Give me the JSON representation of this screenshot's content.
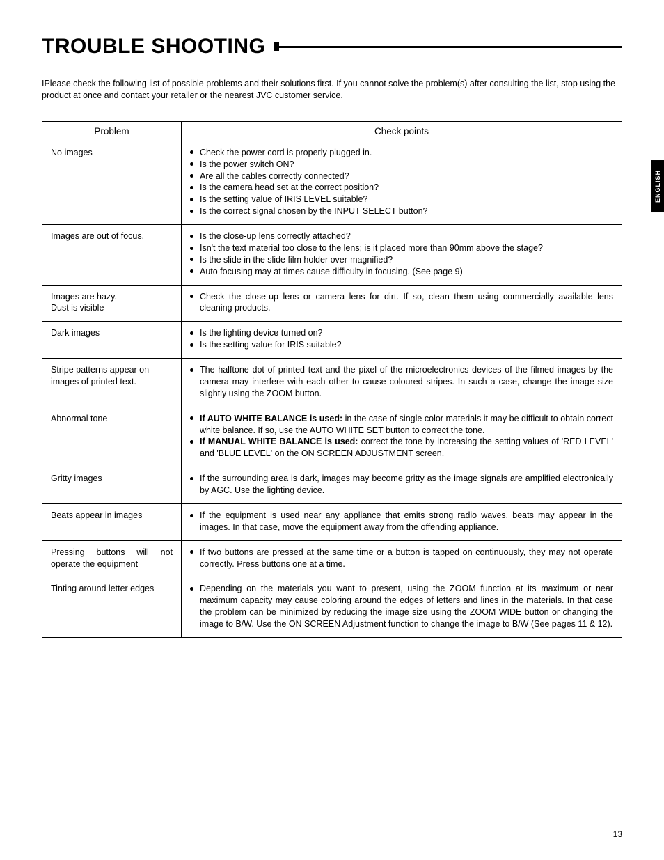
{
  "title": "TROUBLE SHOOTING",
  "intro": "IPlease check the following list of possible problems and their solutions first. If you cannot solve the problem(s) after consulting the list, stop using the product at once and contact your retailer or the nearest JVC customer service.",
  "headers": {
    "problem": "Problem",
    "check": "Check points"
  },
  "rows": {
    "r0": {
      "problem": "No images",
      "b0": "Check the power cord is properly plugged in.",
      "b1": "Is the power switch ON?",
      "b2": "Are all the cables correctly connected?",
      "b3": "Is the camera head set at the correct position?",
      "b4": "Is the setting value of IRIS LEVEL suitable?",
      "b5": "Is the correct signal chosen by the INPUT SELECT button?"
    },
    "r1": {
      "problem": "Images are out of focus.",
      "b0": "Is the close-up lens correctly attached?",
      "b1": "Isn't the text material too close to the lens; is it placed more than 90mm above the stage?",
      "b2": "Is the slide in the slide film holder over-magnified?",
      "b3": "Auto focusing may at times cause difficulty in focusing. (See page 9)"
    },
    "r2": {
      "problem_l1": "Images are hazy.",
      "problem_l2": "Dust is visible",
      "b0": "Check the close-up lens or camera lens for dirt. If so, clean them using commercially available lens cleaning products."
    },
    "r3": {
      "problem": "Dark images",
      "b0": "Is the lighting device turned on?",
      "b1": "Is the setting value for IRIS suitable?"
    },
    "r4": {
      "problem": "Stripe patterns appear on images of printed text.",
      "b0": "The halftone dot of printed text and the pixel of the microelectronics devices of the filmed images by the camera may interfere with each other to cause coloured stripes. In such a case, change the image size slightly using the ZOOM button."
    },
    "r5": {
      "problem": "Abnormal tone",
      "b0_bold": "If AUTO WHITE BALANCE is used:",
      "b0_rest": " in the case of single color materials it may be difficult to obtain correct white balance. If so, use the AUTO WHITE SET button to correct the tone.",
      "b1_bold": "If MANUAL WHITE BALANCE is used:",
      "b1_rest": " correct the tone by increasing the setting values of 'RED LEVEL' and 'BLUE LEVEL' on the ON SCREEN ADJUSTMENT screen."
    },
    "r6": {
      "problem": "Gritty images",
      "b0": "If the surrounding area is dark, images may become gritty as the image signals are amplified electronically by AGC. Use the lighting device."
    },
    "r7": {
      "problem": "Beats appear in images",
      "b0": "If the equipment is used near any appliance that emits strong radio waves, beats may appear in the images. In that case, move the equipment away from the offending appliance."
    },
    "r8": {
      "problem": "Pressing buttons will not operate the equipment",
      "b0": "If two buttons are pressed at the same time or a button is tapped on continuously, they may not operate correctly. Press buttons one at a time."
    },
    "r9": {
      "problem": "Tinting around letter edges",
      "b0": "Depending on the materials you want to present, using the ZOOM function at its maximum or near maximum capacity may cause coloring around the edges of letters and lines in the materials. In that case the problem can be minimized by reducing the image size using the ZOOM WIDE button or changing the image to B/W. Use the ON SCREEN Adjustment function to change the image to B/W (See pages 11 & 12)."
    }
  },
  "side_tab": "ENGLISH",
  "page_number": "13"
}
